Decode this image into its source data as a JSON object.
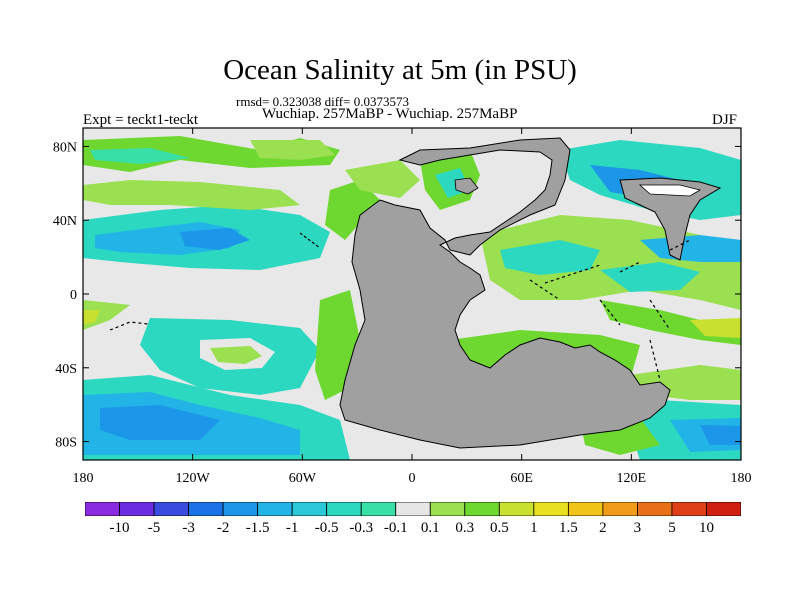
{
  "title": "Ocean Salinity at 5m (in PSU)",
  "stats_line": "rmsd= 0.323038 diff= 0.0373573",
  "subtitle": "Wuchiap. 257MaBP - Wuchiap. 257MaBP",
  "left_label": "Expt = teckt1-teckt",
  "right_label": "DJF",
  "colors": {
    "land": "#a0a0a0",
    "neutral": "#e8e8e8",
    "frame": "#000000"
  },
  "map": {
    "x_ticks": [
      {
        "lon": -180,
        "label": "180"
      },
      {
        "lon": -120,
        "label": "120W"
      },
      {
        "lon": -60,
        "label": "60W"
      },
      {
        "lon": 0,
        "label": "0"
      },
      {
        "lon": 60,
        "label": "60E"
      },
      {
        "lon": 120,
        "label": "120E"
      },
      {
        "lon": 180,
        "label": "180"
      }
    ],
    "y_ticks": [
      {
        "lat": 80,
        "label": "80N"
      },
      {
        "lat": 40,
        "label": "40N"
      },
      {
        "lat": 0,
        "label": "0"
      },
      {
        "lat": -40,
        "label": "40S"
      },
      {
        "lat": -80,
        "label": "80S"
      }
    ],
    "lon_range": [
      -180,
      180
    ],
    "lat_range": [
      -90,
      90
    ]
  },
  "colorbar": {
    "labels": [
      "-10",
      "-5",
      "-3",
      "-2",
      "-1.5",
      "-1",
      "-0.5",
      "-0.3",
      "-0.1",
      "0.1",
      "0.3",
      "0.5",
      "1",
      "1.5",
      "2",
      "3",
      "5",
      "10"
    ],
    "colors": [
      "#8a2be2",
      "#6a2ce0",
      "#3a4cdf",
      "#1a72e6",
      "#1c96e8",
      "#22b4e6",
      "#2ac8d8",
      "#2cd8c0",
      "#38e0a8",
      "#e6e6e6",
      "#9ae050",
      "#6fd830",
      "#c8e030",
      "#e8e020",
      "#f0c418",
      "#f09c18",
      "#e87018",
      "#e04018",
      "#d02010"
    ]
  }
}
